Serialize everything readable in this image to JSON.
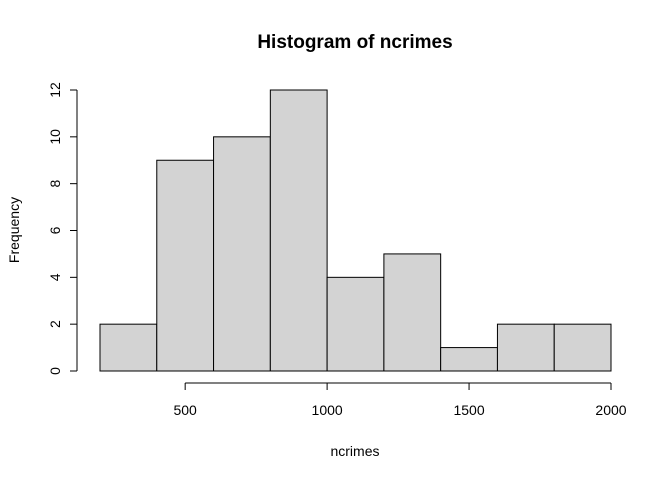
{
  "chart_data": {
    "type": "bar",
    "subtype": "histogram",
    "title": "Histogram of ncrimes",
    "xlabel": "ncrimes",
    "ylabel": "Frequency",
    "bins": [
      {
        "start": 200,
        "end": 400,
        "value": 2
      },
      {
        "start": 400,
        "end": 600,
        "value": 9
      },
      {
        "start": 600,
        "end": 800,
        "value": 10
      },
      {
        "start": 800,
        "end": 1000,
        "value": 12
      },
      {
        "start": 1000,
        "end": 1200,
        "value": 4
      },
      {
        "start": 1200,
        "end": 1400,
        "value": 5
      },
      {
        "start": 1400,
        "end": 1600,
        "value": 1
      },
      {
        "start": 1600,
        "end": 1800,
        "value": 2
      },
      {
        "start": 1800,
        "end": 2000,
        "value": 2
      }
    ],
    "xlim": [
      200,
      2000
    ],
    "ylim": [
      0,
      12
    ],
    "xticks": [
      500,
      1000,
      1500,
      2000
    ],
    "yticks": [
      0,
      2,
      4,
      6,
      8,
      10,
      12
    ],
    "bar_color": "#d3d3d3",
    "grid": false,
    "legend": "none"
  }
}
